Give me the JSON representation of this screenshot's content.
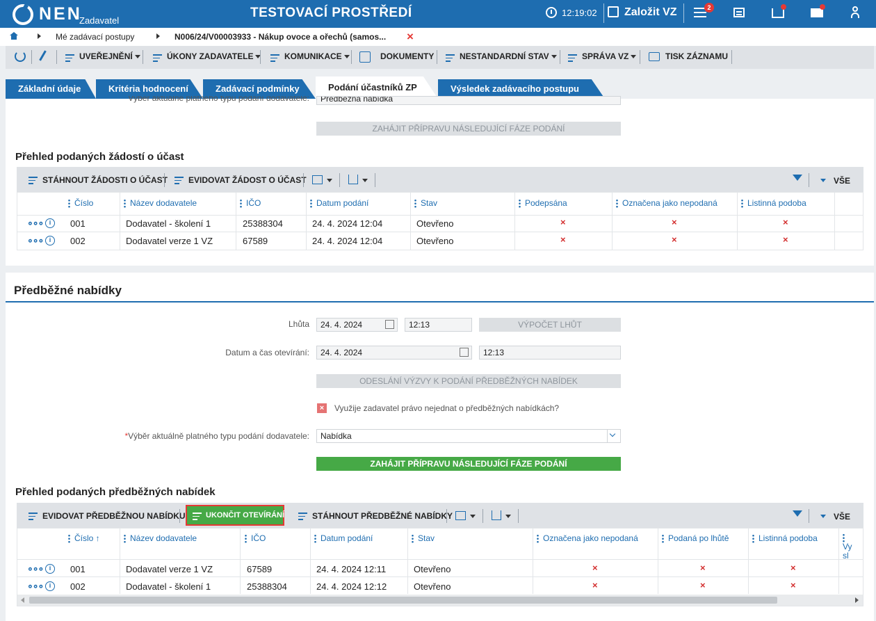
{
  "header": {
    "logo": "NEN",
    "logo_sub": "Zadavatel",
    "env": "TESTOVACÍ PROSTŘEDÍ",
    "time": "12:19:02",
    "create_label": "Založit VZ",
    "menu_badge": "2"
  },
  "breadcrumb": {
    "item1": "Mé zadávací postupy",
    "item2": "N006/24/V00003933 - Nákup ovoce a ořechů (samos...",
    "close": "×"
  },
  "toolbar": {
    "publish": "UVEŘEJNĚNÍ",
    "acts": "ÚKONY ZADAVATELE",
    "comm": "KOMUNIKACE",
    "docs": "DOKUMENTY",
    "nonstd": "NESTANDARDNÍ STAV",
    "admin": "SPRÁVA VZ",
    "print": "TISK ZÁZNAMU"
  },
  "tabs": [
    "Základní údaje",
    "Kritéria hodnocení",
    "Zadávací podmínky",
    "Podání účastníků ZP",
    "Výsledek zadávacího postupu"
  ],
  "top": {
    "cut_label": "Výběr aktuálně platného typu podání dodavatele:",
    "cut_value": "Předběžná nabídka",
    "next_phase": "ZAHÁJIT PŘÍPRAVU NÁSLEDUJÍCÍ FÁZE PODÁNÍ"
  },
  "requests": {
    "title": "Přehled podaných žádostí o účast",
    "btn_download": "STÁHNOUT ŽÁDOSTI O ÚČAST",
    "btn_register": "EVIDOVAT ŽÁDOST O ÚČAST",
    "all": "VŠE",
    "columns": [
      "Číslo",
      "Název dodavatele",
      "IČO",
      "Datum podání",
      "Stav",
      "Podepsána",
      "Označena jako nepodaná",
      "Listinná podoba"
    ],
    "rows": [
      {
        "no": "001",
        "name": "Dodavatel - školení 1",
        "ico": "25388304",
        "date": "24. 4. 2024 12:04",
        "state": "Otevřeno",
        "signed": "×",
        "unsubmitted": "×",
        "paper": "×"
      },
      {
        "no": "002",
        "name": "Dodavatel verze 1 VZ",
        "ico": "67589",
        "date": "24. 4. 2024 12:04",
        "state": "Otevřeno",
        "signed": "×",
        "unsubmitted": "×",
        "paper": "×"
      }
    ]
  },
  "prelim": {
    "section_title": "Předběžné nabídky",
    "deadline_label": "Lhůta",
    "deadline_date": "24. 4. 2024",
    "deadline_time": "12:13",
    "calc_btn": "VÝPOČET LHŮT",
    "open_label": "Datum a čas otevírání:",
    "open_date": "24. 4. 2024",
    "open_time": "12:13",
    "send_btn": "ODESLÁNÍ VÝZVY K PODÁNÍ PŘEDBĚŽNÝCH NABÍDEK",
    "checkbox_label": "Využije zadavatel právo nejednat o předběžných nabídkách?",
    "type_label": "Výběr aktuálně platného typu podání dodavatele:",
    "required": "*",
    "type_value": "Nabídka",
    "next_phase": "ZAHÁJIT PŘÍPRAVU NÁSLEDUJÍCÍ FÁZE PODÁNÍ"
  },
  "offers": {
    "title": "Přehled podaných předběžných nabídek",
    "btn_register": "EVIDOVAT PŘEDBĚŽNOU NABÍDKU",
    "btn_close": "UKONČIT OTEVÍRÁNÍ",
    "btn_download": "STÁHNOUT PŘEDBĚŽNÉ NABÍDKY",
    "all": "VŠE",
    "columns": [
      "Číslo ↑",
      "Název dodavatele",
      "IČO",
      "Datum podání",
      "Stav",
      "Označena jako nepodaná",
      "Podaná po lhůtě",
      "Listinná podoba",
      "Vy sl"
    ],
    "rows": [
      {
        "no": "001",
        "name": "Dodavatel verze 1 VZ",
        "ico": "67589",
        "date": "24. 4. 2024 12:11",
        "state": "Otevřeno",
        "unsubmitted": "×",
        "late": "×",
        "paper": "×"
      },
      {
        "no": "002",
        "name": "Dodavatel - školení 1",
        "ico": "25388304",
        "date": "24. 4. 2024 12:12",
        "state": "Otevřeno",
        "unsubmitted": "×",
        "late": "×",
        "paper": "×"
      }
    ]
  },
  "colors": {
    "brand": "#1e6db0",
    "green": "#46a946",
    "red": "#d32f2f"
  }
}
